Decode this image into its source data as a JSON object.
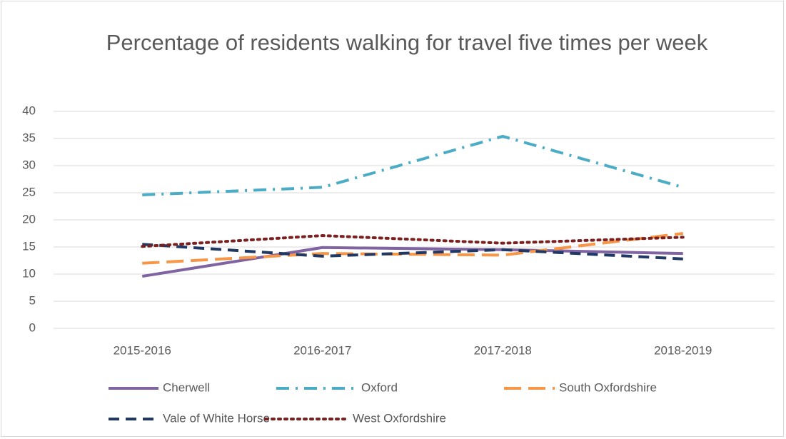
{
  "chart_data": {
    "type": "line",
    "title": "Percentage of residents walking for travel five times per week",
    "categories": [
      "2015-2016",
      "2016-2017",
      "2017-2018",
      "2018-2019"
    ],
    "series": [
      {
        "name": "Cherwell",
        "color": "#8064a2",
        "line_style": "solid",
        "values": [
          9.6,
          14.9,
          14.5,
          13.8
        ]
      },
      {
        "name": "Oxford",
        "color": "#4bacc6",
        "line_style": "dash-dot",
        "values": [
          24.6,
          26,
          35.4,
          26
        ]
      },
      {
        "name": "South Oxfordshire",
        "color": "#f79646",
        "line_style": "long-dash",
        "values": [
          12,
          13.8,
          13.5,
          17.5
        ]
      },
      {
        "name": "Vale of White Horse",
        "color": "#1f3864",
        "line_style": "dash",
        "values": [
          15.5,
          13.3,
          14.5,
          12.8
        ]
      },
      {
        "name": "West Oxfordshire",
        "color": "#7b1f1f",
        "line_style": "dot",
        "values": [
          15.1,
          17.1,
          15.7,
          16.8
        ]
      }
    ],
    "ylim": [
      0,
      40
    ],
    "yticks": [
      0,
      5,
      10,
      15,
      20,
      25,
      30,
      35,
      40
    ],
    "grid": true,
    "legend": "bottom"
  }
}
